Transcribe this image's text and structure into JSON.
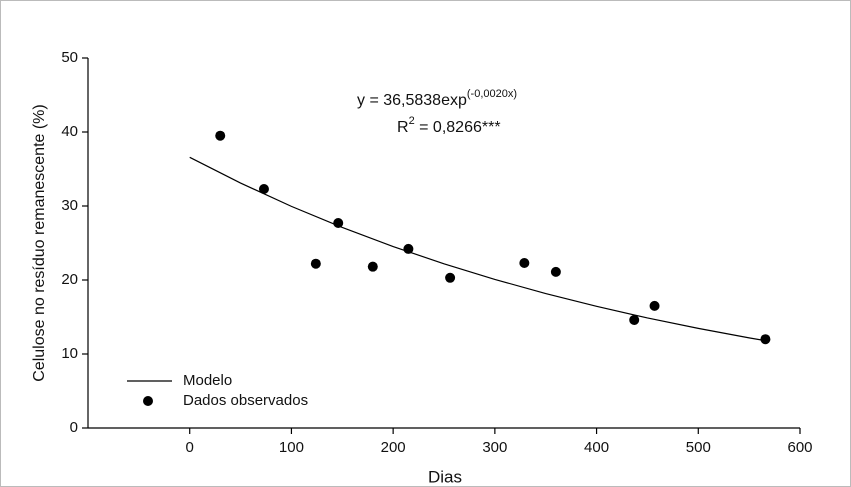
{
  "chart_data": {
    "type": "scatter",
    "x_label": "Dias",
    "y_label": "Celulose no resíduo remanescente (%)",
    "annotation": {
      "equation": "y = 36,5838exp",
      "exponent": "(-0,0020x)",
      "r_label": "R",
      "r_power": "2",
      "r_value": " = 0,8266***"
    },
    "xlim": [
      -100,
      600
    ],
    "xticks": [
      0,
      100,
      200,
      300,
      400,
      500,
      600
    ],
    "ylim": [
      0,
      50
    ],
    "yticks": [
      0,
      10,
      20,
      30,
      40,
      50
    ],
    "grid": false,
    "legend": "lower left",
    "series": [
      {
        "name": "Modelo",
        "type": "line",
        "color": "#000000",
        "x": [
          0,
          50,
          100,
          150,
          200,
          250,
          300,
          350,
          400,
          450,
          500,
          550,
          565
        ],
        "values": [
          36.58,
          33.1,
          29.95,
          27.1,
          24.52,
          22.19,
          20.08,
          18.17,
          16.44,
          14.87,
          13.46,
          12.18,
          11.82
        ]
      },
      {
        "name": "Dados observados",
        "type": "scatter",
        "color": "#000000",
        "x": [
          30,
          73,
          124,
          146,
          180,
          215,
          256,
          329,
          360,
          437,
          457,
          566
        ],
        "values": [
          39.5,
          32.3,
          22.2,
          27.7,
          21.8,
          24.2,
          20.3,
          22.3,
          21.1,
          14.6,
          16.5,
          12.0
        ]
      }
    ]
  }
}
